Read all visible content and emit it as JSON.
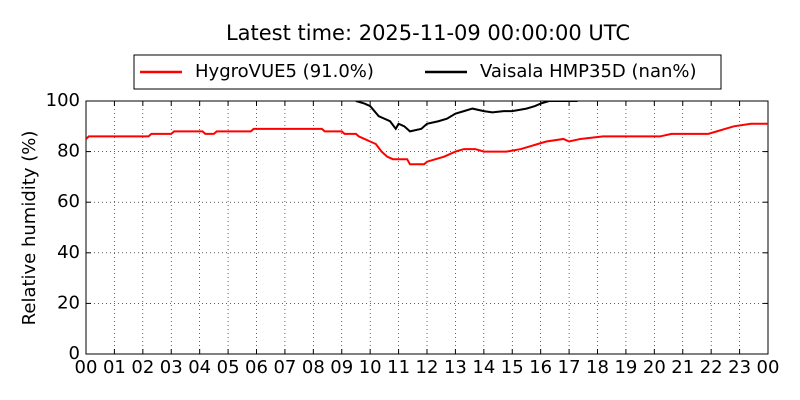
{
  "chart_data": {
    "type": "line",
    "title": "Latest time: 2025-11-09 00:00:00 UTC",
    "y_label": "Relative humidity (%)",
    "xlim": [
      0,
      24
    ],
    "xticks": [
      {
        "value": 0,
        "label": "00"
      },
      {
        "value": 1,
        "label": "01"
      },
      {
        "value": 2,
        "label": "02"
      },
      {
        "value": 3,
        "label": "03"
      },
      {
        "value": 4,
        "label": "04"
      },
      {
        "value": 5,
        "label": "05"
      },
      {
        "value": 6,
        "label": "06"
      },
      {
        "value": 7,
        "label": "07"
      },
      {
        "value": 8,
        "label": "08"
      },
      {
        "value": 9,
        "label": "09"
      },
      {
        "value": 10,
        "label": "10"
      },
      {
        "value": 11,
        "label": "11"
      },
      {
        "value": 12,
        "label": "12"
      },
      {
        "value": 13,
        "label": "13"
      },
      {
        "value": 14,
        "label": "14"
      },
      {
        "value": 15,
        "label": "15"
      },
      {
        "value": 16,
        "label": "16"
      },
      {
        "value": 17,
        "label": "17"
      },
      {
        "value": 18,
        "label": "18"
      },
      {
        "value": 19,
        "label": "19"
      },
      {
        "value": 20,
        "label": "20"
      },
      {
        "value": 21,
        "label": "21"
      },
      {
        "value": 22,
        "label": "22"
      },
      {
        "value": 23,
        "label": "23"
      },
      {
        "value": 24,
        "label": "00"
      }
    ],
    "ylim": [
      0,
      100
    ],
    "yticks": [
      0,
      20,
      40,
      60,
      80,
      100
    ],
    "grid": true,
    "series": [
      {
        "name": "HygroVUE5 (91.0%)",
        "color": "#ff0000",
        "x": [
          0,
          0.1,
          0.9,
          2.2,
          2.3,
          3.0,
          3.1,
          4.1,
          4.2,
          4.5,
          4.6,
          5.8,
          5.9,
          8.3,
          8.4,
          9.0,
          9.1,
          9.5,
          9.6,
          9.8,
          10.0,
          10.2,
          10.4,
          10.6,
          10.8,
          11.3,
          11.4,
          11.9,
          12.0,
          12.3,
          12.6,
          13.0,
          13.3,
          13.7,
          14.0,
          14.8,
          15.3,
          15.6,
          15.9,
          16.2,
          16.8,
          17.0,
          17.4,
          18.2,
          20.2,
          20.6,
          21.9,
          22.2,
          22.5,
          22.8,
          23.4,
          24
        ],
        "values": [
          85,
          86,
          86,
          86,
          87,
          87,
          88,
          88,
          87,
          87,
          88,
          88,
          89,
          89,
          88,
          88,
          87,
          87,
          86,
          85,
          84,
          83,
          80,
          78,
          77,
          77,
          75,
          75,
          76,
          77,
          78,
          80,
          81,
          81,
          80,
          80,
          81,
          82,
          83,
          84,
          85,
          84,
          85,
          86,
          86,
          87,
          87,
          88,
          89,
          90,
          91,
          91
        ]
      },
      {
        "name": "Vaisala HMP35D (nan%)",
        "color": "#000000",
        "x": [
          9.5,
          9.8,
          10.0,
          10.3,
          10.7,
          10.9,
          11.0,
          11.2,
          11.4,
          11.8,
          12.0,
          12.4,
          12.7,
          13.0,
          13.3,
          13.6,
          14.0,
          14.3,
          14.7,
          15.0,
          15.5,
          15.8,
          16.0,
          16.3,
          17.0,
          17.3
        ],
        "values": [
          100,
          99,
          98,
          94,
          92,
          89,
          91,
          90,
          88,
          89,
          91,
          92,
          93,
          95,
          96,
          97,
          96,
          95.5,
          96,
          96,
          97,
          98,
          99,
          100,
          100,
          100
        ]
      }
    ]
  }
}
